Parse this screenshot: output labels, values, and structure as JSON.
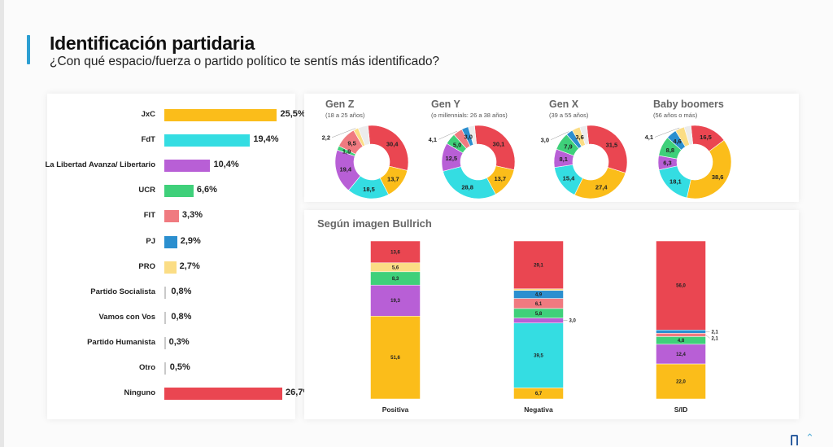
{
  "header": {
    "title": "Identificación partidaria",
    "subtitle": "¿Con qué espacio/fuerza o partido político te sentís más identificado?"
  },
  "colors": {
    "JxC": "#fbbd1a",
    "FdT": "#34dde2",
    "LLA": "#b85fd6",
    "UCR": "#3fd07a",
    "FIT": "#f07a80",
    "PJ": "#2b8fcf",
    "PRO": "#fbdd85",
    "Ninguno": "#ea4651",
    "Otros": "#c9c9c9",
    "accent": "#2d9fd2"
  },
  "chart_data": [
    {
      "type": "bar",
      "orientation": "horizontal",
      "title": "",
      "categories": [
        "JxC",
        "FdT",
        "La Libertad Avanza/ Libertario",
        "UCR",
        "FIT",
        "PJ",
        "PRO",
        "Partido Socialista",
        "Vamos con Vos",
        "Partido Humanista",
        "Otro",
        "Ninguno"
      ],
      "values": [
        25.5,
        19.4,
        10.4,
        6.6,
        3.3,
        2.9,
        2.7,
        0.8,
        0.8,
        0.3,
        0.5,
        26.7
      ],
      "labels": [
        "25,5%",
        "19,4%",
        "10,4%",
        "6,6%",
        "3,3%",
        "2,9%",
        "2,7%",
        "0,8%",
        "0,8%",
        "0,3%",
        "0,5%",
        "26,7%"
      ],
      "color_keys": [
        "JxC",
        "FdT",
        "LLA",
        "UCR",
        "FIT",
        "PJ",
        "PRO",
        "Otros",
        "Otros",
        "Otros",
        "Otros",
        "Ninguno"
      ],
      "unit": "%"
    },
    {
      "type": "pie",
      "variant": "donut",
      "groups": [
        {
          "title": "Gen Z",
          "subtitle": "(18 a 25 años)",
          "slices": [
            {
              "key": "Ninguno",
              "value": 30.4,
              "label": "30,4"
            },
            {
              "key": "JxC",
              "value": 13.7,
              "label": "13,7"
            },
            {
              "key": "FdT",
              "value": 18.5,
              "label": "18,5"
            },
            {
              "key": "LLA",
              "value": 19.4,
              "label": "19,4"
            },
            {
              "key": "UCR",
              "value": 1.9,
              "label": "1,9"
            },
            {
              "key": "FIT",
              "value": 9.5,
              "label": "9,5"
            },
            {
              "key": "PRO",
              "value": 2.2,
              "label": "2,2"
            }
          ]
        },
        {
          "title": "Gen Y",
          "subtitle": "(o millennials: 26 a 38 años)",
          "slices": [
            {
              "key": "Ninguno",
              "value": 30.1,
              "label": "30,1"
            },
            {
              "key": "JxC",
              "value": 13.7,
              "label": "13,7"
            },
            {
              "key": "FdT",
              "value": 28.8,
              "label": "28,8"
            },
            {
              "key": "LLA",
              "value": 12.5,
              "label": "12,5"
            },
            {
              "key": "UCR",
              "value": 5.0,
              "label": "5,0"
            },
            {
              "key": "FIT",
              "value": 4.1,
              "label": "4,1"
            },
            {
              "key": "PJ",
              "value": 3.0,
              "label": "3,0"
            }
          ]
        },
        {
          "title": "Gen X",
          "subtitle": "(39 a 55 años)",
          "slices": [
            {
              "key": "Ninguno",
              "value": 31.5,
              "label": "31,5"
            },
            {
              "key": "JxC",
              "value": 27.4,
              "label": "27,4"
            },
            {
              "key": "FdT",
              "value": 15.4,
              "label": "15,4"
            },
            {
              "key": "LLA",
              "value": 8.1,
              "label": "8,1"
            },
            {
              "key": "UCR",
              "value": 7.9,
              "label": "7,9"
            },
            {
              "key": "PJ",
              "value": 3.0,
              "label": "3,0"
            },
            {
              "key": "PRO",
              "value": 3.6,
              "label": "3,6"
            }
          ]
        },
        {
          "title": "Baby boomers",
          "subtitle": "(56 años o más)",
          "slices": [
            {
              "key": "Ninguno",
              "value": 16.5,
              "label": "16,5"
            },
            {
              "key": "JxC",
              "value": 38.6,
              "label": "38,6"
            },
            {
              "key": "FdT",
              "value": 18.1,
              "label": "18,1"
            },
            {
              "key": "LLA",
              "value": 6.3,
              "label": "6,3"
            },
            {
              "key": "UCR",
              "value": 8.8,
              "label": "8,8"
            },
            {
              "key": "PJ",
              "value": 4.6,
              "label": "4,6"
            },
            {
              "key": "PRO",
              "value": 4.1,
              "label": "4,1"
            }
          ]
        }
      ]
    },
    {
      "type": "bar",
      "variant": "stacked-100",
      "title": "Según imagen Bullrich",
      "categories": [
        "Positiva",
        "Negativa",
        "S/ID"
      ],
      "stacks": [
        {
          "category": "Positiva",
          "segments": [
            {
              "key": "Ninguno",
              "value": 13.6,
              "label": "13,6"
            },
            {
              "key": "PRO",
              "value": 5.6,
              "label": "5,6"
            },
            {
              "key": "UCR",
              "value": 8.3,
              "label": "8,3"
            },
            {
              "key": "LLA",
              "value": 19.3,
              "label": "19,3"
            },
            {
              "key": "JxC",
              "value": 51.6,
              "label": "51,6"
            }
          ]
        },
        {
          "category": "Negativa",
          "segments": [
            {
              "key": "Ninguno",
              "value": 29.1,
              "label": "29,1"
            },
            {
              "key": "PRO",
              "value": 1.0,
              "label": ""
            },
            {
              "key": "PJ",
              "value": 4.9,
              "label": "4,9"
            },
            {
              "key": "FIT",
              "value": 6.1,
              "label": "6,1"
            },
            {
              "key": "UCR",
              "value": 5.8,
              "label": "5,8"
            },
            {
              "key": "LLA",
              "value": 3.0,
              "label": "3,0"
            },
            {
              "key": "FdT",
              "value": 39.5,
              "label": "39,5"
            },
            {
              "key": "JxC",
              "value": 6.7,
              "label": "6,7"
            }
          ]
        },
        {
          "category": "S/ID",
          "segments": [
            {
              "key": "Ninguno",
              "value": 56.0,
              "label": "56,0"
            },
            {
              "key": "PJ",
              "value": 2.1,
              "label": "2,1"
            },
            {
              "key": "FIT",
              "value": 2.1,
              "label": "2,1"
            },
            {
              "key": "UCR",
              "value": 4.8,
              "label": "4,8"
            },
            {
              "key": "LLA",
              "value": 12.4,
              "label": "12,4"
            },
            {
              "key": "JxC",
              "value": 22.0,
              "label": "22,0"
            }
          ]
        }
      ]
    }
  ]
}
